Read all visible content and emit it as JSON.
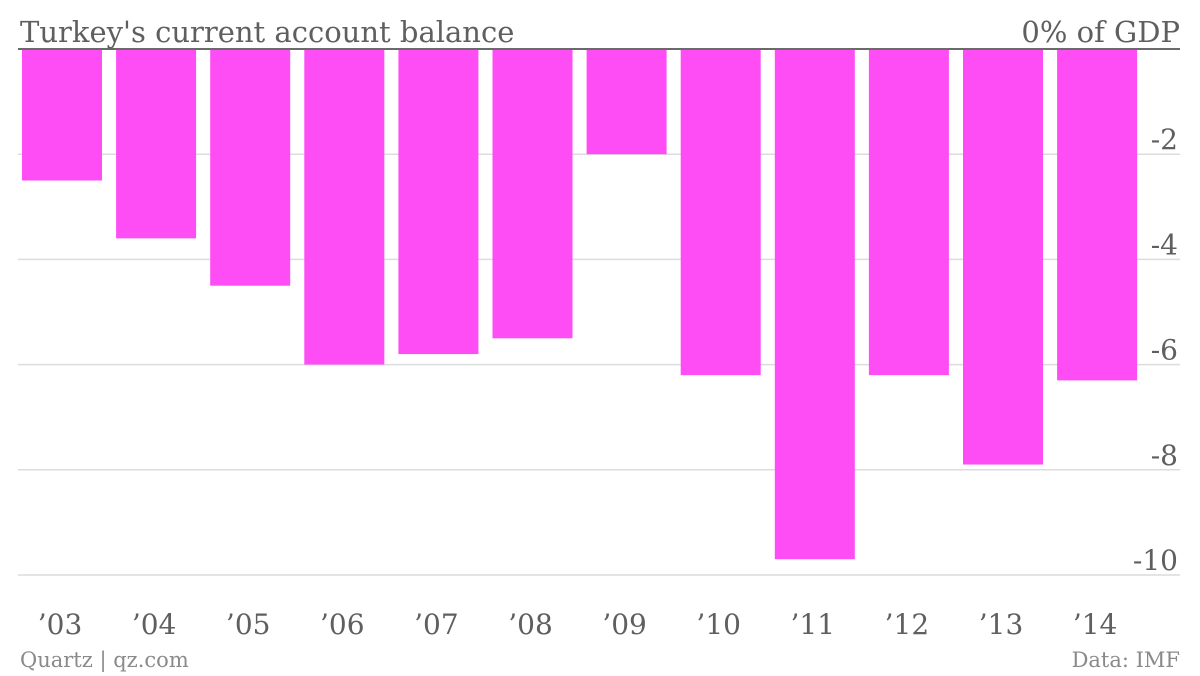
{
  "chart_data": {
    "type": "bar",
    "title": "Turkey's current account balance",
    "unit_label": "0% of GDP",
    "categories": [
      "’03",
      "’04",
      "’05",
      "’06",
      "’07",
      "’08",
      "’09",
      "’10",
      "’11",
      "’12",
      "’13",
      "’14"
    ],
    "values": [
      -2.5,
      -3.6,
      -4.5,
      -6.0,
      -5.8,
      -5.5,
      -2.0,
      -6.2,
      -9.7,
      -6.2,
      -7.9,
      -6.3
    ],
    "y_ticks": [
      "-2",
      "-4",
      "-6",
      "-8",
      "-10"
    ],
    "y_tick_values": [
      -2,
      -4,
      -6,
      -8,
      -10
    ],
    "ylim": [
      -10.5,
      0
    ],
    "grid": true,
    "bar_color": "#ff4df6",
    "source": "Data: IMF",
    "credit": "Quartz | qz.com"
  }
}
